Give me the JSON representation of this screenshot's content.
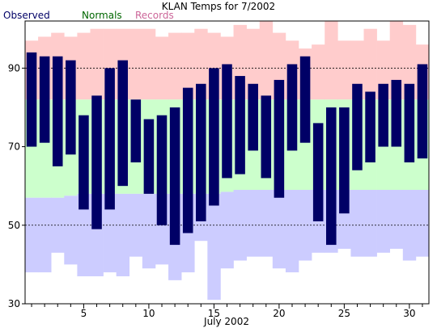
{
  "chart_data": {
    "type": "bar",
    "title": "KLAN Temps for 7/2002",
    "xlabel": "July 2002",
    "ylabel": "",
    "legend": [
      {
        "name": "Observed",
        "color": "#000066"
      },
      {
        "name": "Normals",
        "color": "#006600"
      },
      {
        "name": "Records",
        "color": "#cc6699"
      }
    ],
    "legend_position": "top-left",
    "colors": {
      "observed": "#000066",
      "normal_band": "#ccffcc",
      "record_high_band": "#ffcccc",
      "record_low_band": "#ccccff",
      "grid": "#000000"
    },
    "xlim": [
      0.5,
      31.5
    ],
    "ylim": [
      30,
      102
    ],
    "x_ticks": [
      5,
      10,
      15,
      20,
      25,
      30
    ],
    "y_ticks": [
      30,
      50,
      70,
      90
    ],
    "y_gridlines": [
      50,
      90
    ],
    "days": [
      1,
      2,
      3,
      4,
      5,
      6,
      7,
      8,
      9,
      10,
      11,
      12,
      13,
      14,
      15,
      16,
      17,
      18,
      19,
      20,
      21,
      22,
      23,
      24,
      25,
      26,
      27,
      28,
      29,
      30,
      31
    ],
    "series": [
      {
        "name": "Observed High",
        "values": [
          94,
          93,
          93,
          92,
          78,
          83,
          90,
          92,
          82,
          77,
          78,
          80,
          85,
          86,
          90,
          91,
          88,
          86,
          83,
          87,
          91,
          93,
          76,
          80,
          80,
          86,
          84,
          86,
          87,
          86,
          91
        ]
      },
      {
        "name": "Observed Low",
        "values": [
          70,
          71,
          65,
          68,
          54,
          49,
          54,
          60,
          66,
          58,
          50,
          45,
          48,
          51,
          55,
          62,
          63,
          69,
          62,
          57,
          69,
          71,
          51,
          45,
          53,
          64,
          66,
          70,
          70,
          66,
          67
        ]
      },
      {
        "name": "Normal High",
        "values": [
          82,
          82,
          82,
          82,
          82,
          82,
          82,
          82,
          82,
          82,
          82,
          82,
          82,
          82,
          82,
          82,
          82,
          82,
          82,
          82,
          82,
          82,
          82,
          82,
          82,
          82,
          82,
          82,
          82,
          82,
          82
        ]
      },
      {
        "name": "Normal Low",
        "values": [
          57,
          57,
          57,
          57.5,
          58,
          58,
          58,
          58,
          58,
          58,
          58,
          58,
          58,
          58,
          58,
          58.5,
          59,
          59,
          59,
          59,
          59,
          59,
          59,
          59,
          59,
          59,
          59,
          59,
          59,
          59,
          59
        ]
      },
      {
        "name": "Record High",
        "values": [
          97,
          98,
          99,
          98,
          99,
          100,
          100,
          100,
          100,
          100,
          98,
          99,
          99,
          100,
          99,
          98,
          101,
          100,
          102,
          99,
          97,
          95,
          96,
          102,
          97,
          97,
          100,
          97,
          102,
          101,
          96
        ]
      },
      {
        "name": "Record Low",
        "values": [
          38,
          38,
          43,
          40,
          37,
          37,
          38,
          37,
          42,
          39,
          40,
          36,
          38,
          46,
          31,
          39,
          41,
          42,
          42,
          39,
          38,
          41,
          43,
          43,
          44,
          42,
          42,
          43,
          44,
          41,
          42
        ]
      }
    ]
  }
}
